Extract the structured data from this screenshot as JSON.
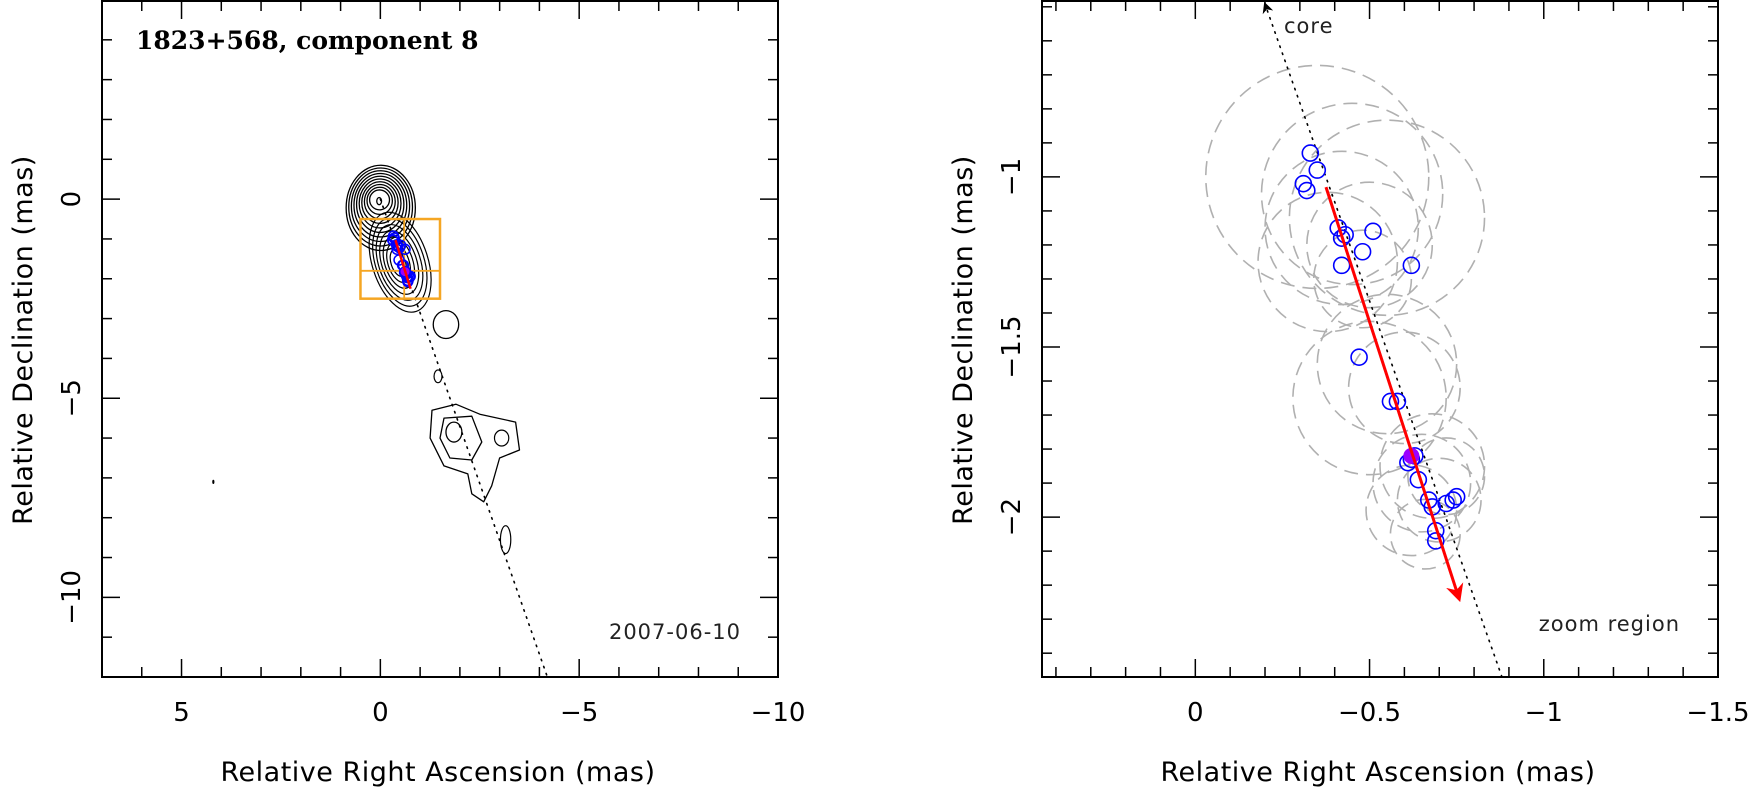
{
  "chart_data": [
    {
      "type": "contour",
      "title": "1823+568, component 8",
      "annotation": "2007-06-10",
      "xlabel": "Relative Right Ascension (mas)",
      "ylabel": "Relative Declination (mas)",
      "xlim": [
        7,
        -10
      ],
      "ylim": [
        -12,
        5
      ],
      "xticks": [
        5,
        0,
        -5,
        -10
      ],
      "xtick_labels": [
        "5",
        "0",
        "−5",
        "−10"
      ],
      "yticks": [
        0,
        -5,
        -10
      ],
      "ytick_labels": [
        "0",
        "−5",
        "−10"
      ],
      "core": [
        0,
        0
      ],
      "contour_levels": 10,
      "jet_direction_line": [
        [
          0,
          0
        ],
        [
          -4.2,
          -12
        ]
      ],
      "zoom_box": {
        "x": [
          0.5,
          -1.5
        ],
        "y": [
          -2.5,
          -0.5
        ],
        "color": "#f5a623"
      },
      "zoom_crosshair": {
        "x": -0.6,
        "y": -1.8
      },
      "motion_vector": {
        "from": [
          -0.38,
          -1.03
        ],
        "to": [
          -0.76,
          -2.25
        ],
        "color": "#ff0000"
      },
      "component_positions": [
        {
          "x": -0.33,
          "y": -0.93
        },
        {
          "x": -0.35,
          "y": -0.98
        },
        {
          "x": -0.31,
          "y": -1.02
        },
        {
          "x": -0.32,
          "y": -1.04
        },
        {
          "x": -0.41,
          "y": -1.15
        },
        {
          "x": -0.43,
          "y": -1.17
        },
        {
          "x": -0.42,
          "y": -1.18
        },
        {
          "x": -0.51,
          "y": -1.16
        },
        {
          "x": -0.48,
          "y": -1.22
        },
        {
          "x": -0.42,
          "y": -1.26
        },
        {
          "x": -0.62,
          "y": -1.26
        },
        {
          "x": -0.47,
          "y": -1.53
        },
        {
          "x": -0.56,
          "y": -1.66
        },
        {
          "x": -0.58,
          "y": -1.66
        },
        {
          "x": -0.62,
          "y": -1.83
        },
        {
          "x": -0.63,
          "y": -1.82
        },
        {
          "x": -0.61,
          "y": -1.84
        },
        {
          "x": -0.64,
          "y": -1.89
        },
        {
          "x": -0.67,
          "y": -1.95
        },
        {
          "x": -0.68,
          "y": -1.97
        },
        {
          "x": -0.72,
          "y": -1.96
        },
        {
          "x": -0.74,
          "y": -1.95
        },
        {
          "x": -0.75,
          "y": -1.94
        },
        {
          "x": -0.69,
          "y": -2.04
        },
        {
          "x": -0.69,
          "y": -2.07
        }
      ],
      "current_epoch_position": {
        "x": -0.62,
        "y": -1.82
      }
    },
    {
      "type": "scatter",
      "title": "",
      "xlabel": "Relative Right Ascension (mas)",
      "ylabel": "Relative Declination (mas)",
      "xlim": [
        0.44,
        -1.5
      ],
      "ylim": [
        -2.47,
        -0.48
      ],
      "xticks": [
        0,
        -0.5,
        -1,
        -1.5
      ],
      "xtick_labels": [
        "0",
        "−0.5",
        "−1",
        "−1.5"
      ],
      "yticks": [
        -1,
        -1.5,
        -2
      ],
      "ytick_labels": [
        "−1",
        "−1.5",
        "−2"
      ],
      "core_label": "core",
      "zoom_label": "zoom region",
      "direction_line": [
        [
          -0.2,
          -0.48
        ],
        [
          -0.88,
          -2.47
        ]
      ],
      "motion_vector": {
        "from": [
          -0.375,
          -1.03
        ],
        "to": [
          -0.757,
          -2.24
        ],
        "color": "#ff0000"
      },
      "component_positions": [
        {
          "x": -0.33,
          "y": -0.93
        },
        {
          "x": -0.35,
          "y": -0.98
        },
        {
          "x": -0.31,
          "y": -1.02
        },
        {
          "x": -0.32,
          "y": -1.04
        },
        {
          "x": -0.41,
          "y": -1.15
        },
        {
          "x": -0.43,
          "y": -1.17
        },
        {
          "x": -0.42,
          "y": -1.18
        },
        {
          "x": -0.51,
          "y": -1.16
        },
        {
          "x": -0.48,
          "y": -1.22
        },
        {
          "x": -0.42,
          "y": -1.26
        },
        {
          "x": -0.62,
          "y": -1.26
        },
        {
          "x": -0.47,
          "y": -1.53
        },
        {
          "x": -0.56,
          "y": -1.66
        },
        {
          "x": -0.58,
          "y": -1.66
        },
        {
          "x": -0.62,
          "y": -1.83
        },
        {
          "x": -0.63,
          "y": -1.82
        },
        {
          "x": -0.61,
          "y": -1.84
        },
        {
          "x": -0.64,
          "y": -1.89
        },
        {
          "x": -0.67,
          "y": -1.95
        },
        {
          "x": -0.68,
          "y": -1.97
        },
        {
          "x": -0.72,
          "y": -1.96
        },
        {
          "x": -0.74,
          "y": -1.95
        },
        {
          "x": -0.75,
          "y": -1.94
        },
        {
          "x": -0.69,
          "y": -2.04
        },
        {
          "x": -0.69,
          "y": -2.07
        }
      ],
      "current_epoch_position": {
        "x": -0.62,
        "y": -1.82
      },
      "current_epoch_color": "#9b00ff",
      "component_fwhm_circles": [
        {
          "x": -0.35,
          "y": -1.0,
          "r": 0.32
        },
        {
          "x": -0.45,
          "y": -1.05,
          "r": 0.26
        },
        {
          "x": -0.42,
          "y": -1.15,
          "r": 0.22
        },
        {
          "x": -0.5,
          "y": -1.2,
          "r": 0.18
        },
        {
          "x": -0.55,
          "y": -1.12,
          "r": 0.28
        },
        {
          "x": -0.38,
          "y": -1.25,
          "r": 0.2
        },
        {
          "x": -0.48,
          "y": -1.3,
          "r": 0.14
        },
        {
          "x": -0.55,
          "y": -1.55,
          "r": 0.2
        },
        {
          "x": -0.6,
          "y": -1.62,
          "r": 0.16
        },
        {
          "x": -0.5,
          "y": -1.65,
          "r": 0.22
        },
        {
          "x": -0.65,
          "y": -1.9,
          "r": 0.14
        },
        {
          "x": -0.7,
          "y": -1.95,
          "r": 0.12
        },
        {
          "x": -0.62,
          "y": -1.98,
          "r": 0.13
        },
        {
          "x": -0.72,
          "y": -1.88,
          "r": 0.11
        },
        {
          "x": -0.66,
          "y": -2.05,
          "r": 0.1
        },
        {
          "x": -0.68,
          "y": -1.85,
          "r": 0.15
        }
      ]
    }
  ]
}
